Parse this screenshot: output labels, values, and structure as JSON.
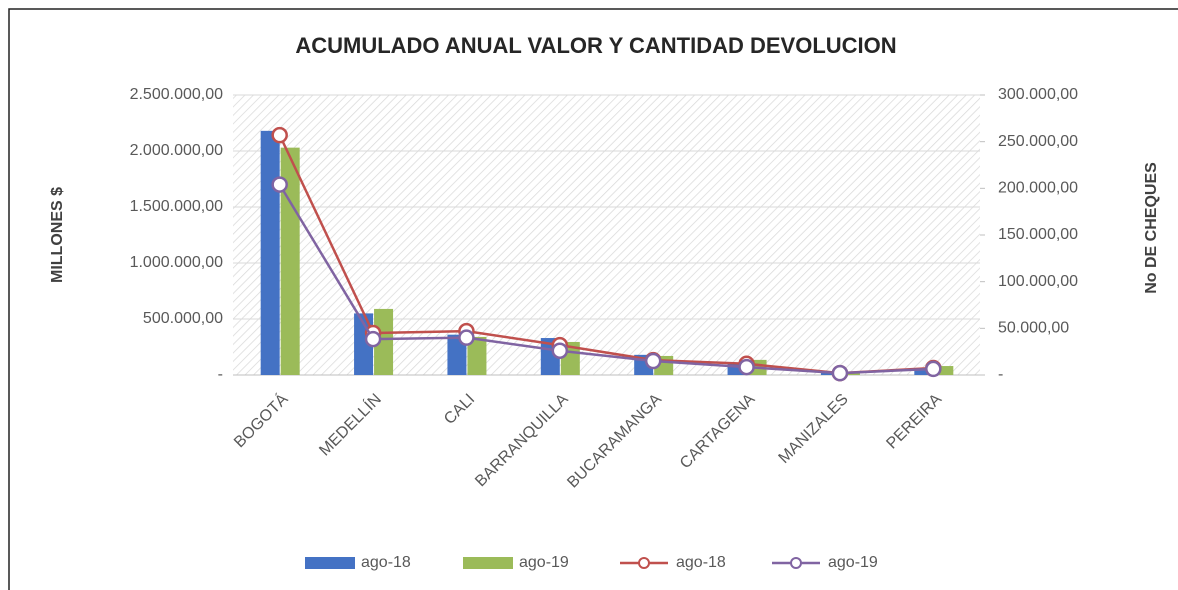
{
  "chart_data": {
    "type": "bar_line",
    "title": "ACUMULADO ANUAL VALOR Y CANTIDAD DEVOLUCION",
    "ylabel": "MILLONES $",
    "y2label": "No DE CHEQUES",
    "categories": [
      "BOGOTÁ",
      "MEDELLÍN",
      "CALI",
      "BARRANQUILLA",
      "BUCARAMANGA",
      "CARTAGENA",
      "MANIZALES",
      "PEREIRA"
    ],
    "ylim": [
      0,
      2500000
    ],
    "yticks": [
      {
        "value": 0,
        "label": "-"
      },
      {
        "value": 500000,
        "label": "500.000,00"
      },
      {
        "value": 1000000,
        "label": "1.000.000,00"
      },
      {
        "value": 1500000,
        "label": "1.500.000,00"
      },
      {
        "value": 2000000,
        "label": "2.000.000,00"
      },
      {
        "value": 2500000,
        "label": "2.500.000,00"
      }
    ],
    "y2lim": [
      0,
      300000
    ],
    "y2ticks": [
      {
        "value": 0,
        "label": "-"
      },
      {
        "value": 50000,
        "label": "50.000,00"
      },
      {
        "value": 100000,
        "label": "100.000,00"
      },
      {
        "value": 150000,
        "label": "150.000,00"
      },
      {
        "value": 200000,
        "label": "200.000,00"
      },
      {
        "value": 250000,
        "label": "250.000,00"
      },
      {
        "value": 300000,
        "label": "300.000,00"
      }
    ],
    "grid": true,
    "legend": "bottom",
    "series": [
      {
        "name": "ago-18",
        "kind": "bar",
        "axis": "y",
        "color": "#4472c4",
        "values": [
          2180000,
          550000,
          360000,
          330000,
          180000,
          110000,
          25000,
          40000
        ]
      },
      {
        "name": "ago-19",
        "kind": "bar",
        "axis": "y",
        "color": "#9bbb59",
        "values": [
          2030000,
          590000,
          340000,
          295000,
          170000,
          135000,
          20000,
          80000
        ]
      },
      {
        "name": "ago-18",
        "kind": "line",
        "axis": "y2",
        "color": "#c0504d",
        "values": [
          257000,
          45000,
          47000,
          32000,
          16000,
          12000,
          2000,
          7500
        ]
      },
      {
        "name": "ago-19",
        "kind": "line",
        "axis": "y2",
        "color": "#8064a2",
        "values": [
          204000,
          38500,
          40000,
          26000,
          15000,
          8500,
          2000,
          6500
        ]
      }
    ]
  }
}
